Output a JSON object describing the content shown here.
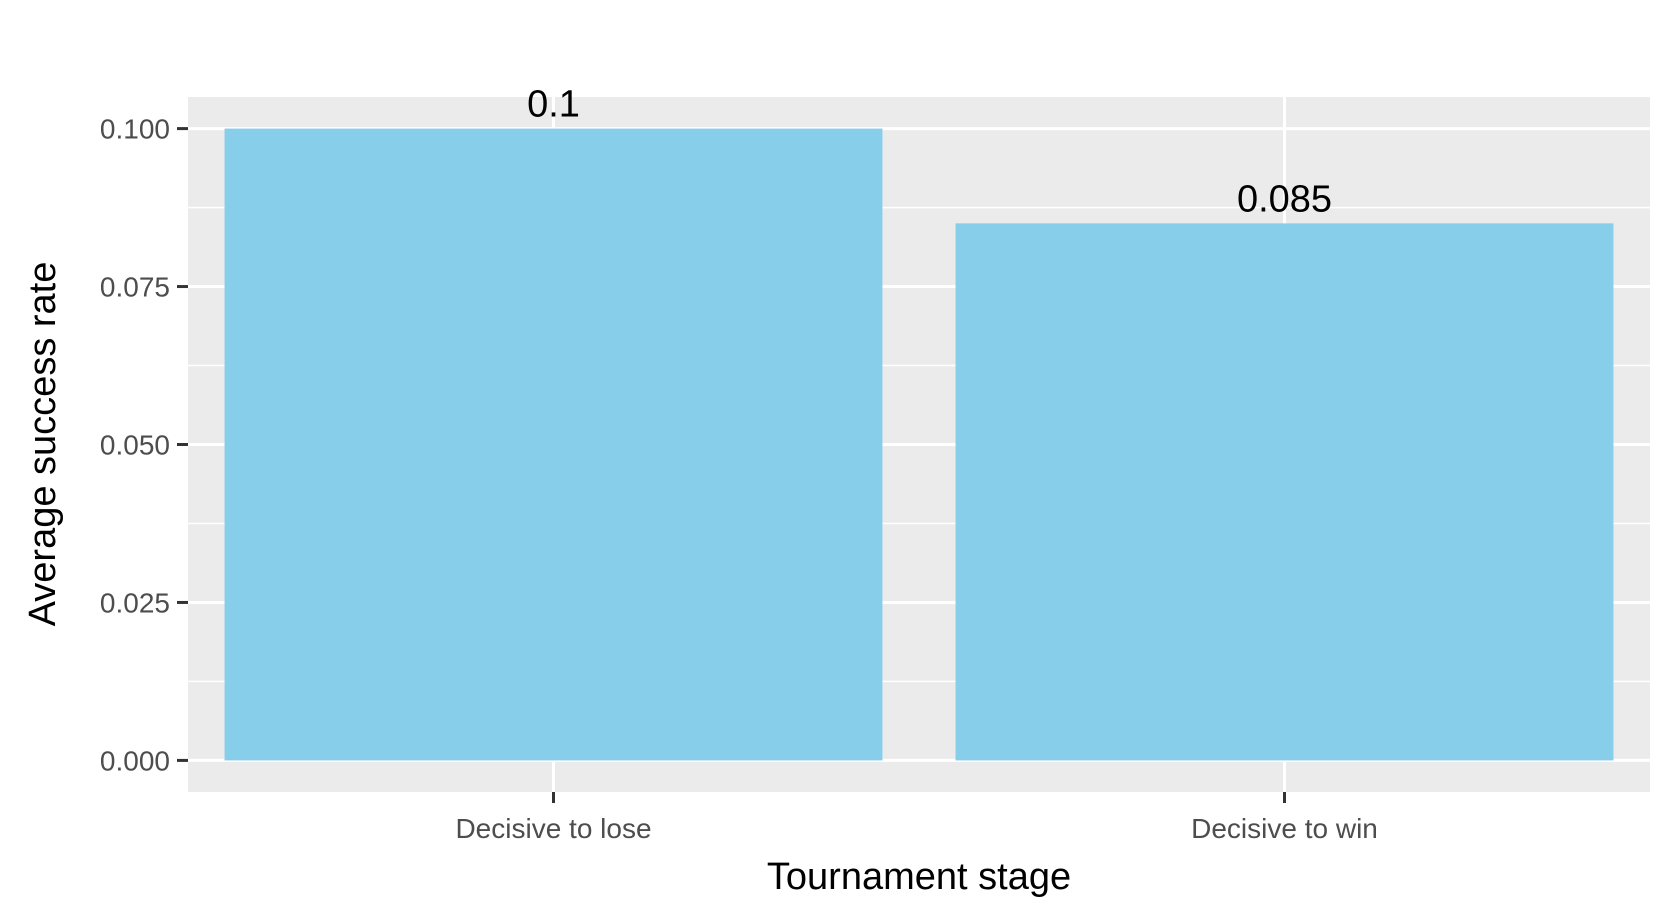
{
  "chart_data": {
    "type": "bar",
    "categories": [
      "Decisive to lose",
      "Decisive to win"
    ],
    "values": [
      0.1,
      0.085
    ],
    "data_labels": [
      "0.1",
      "0.085"
    ],
    "title": "",
    "xlabel": "Tournament stage",
    "ylabel": "Average success rate",
    "ylim": [
      -0.005,
      0.105
    ],
    "yticks": [
      0,
      0.025,
      0.05,
      0.075,
      0.1
    ],
    "ytick_labels": [
      "0.000",
      "0.025",
      "0.050",
      "0.075",
      "0.100"
    ],
    "grid": true,
    "legend": "none",
    "colors": {
      "bar": "#87CEEB",
      "panel": "#EBEBEB",
      "grid": "#FFFFFF",
      "tick": "#333333"
    }
  }
}
